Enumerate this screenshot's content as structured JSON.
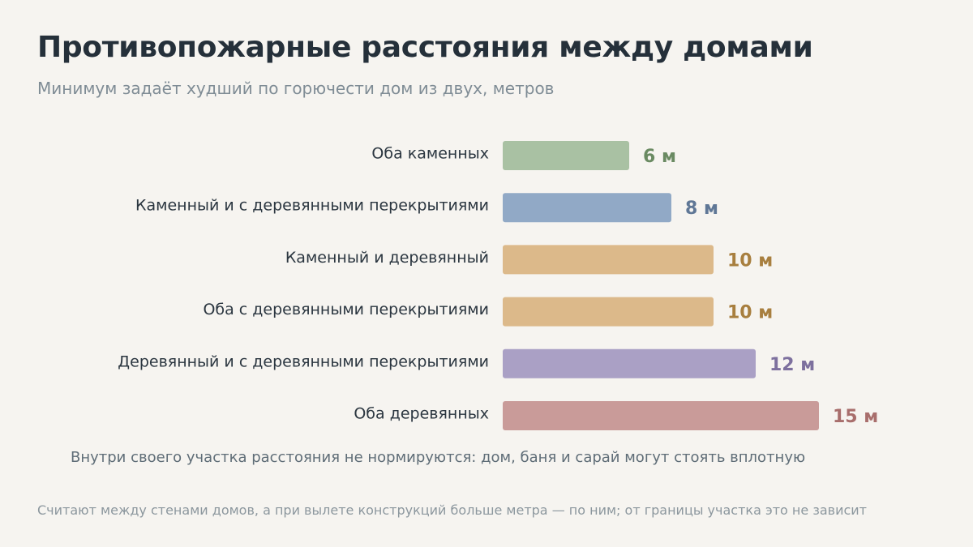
{
  "header": {
    "title": "Противопожарные расстояния между домами",
    "subtitle": "Минимум задаёт худший по горючести дом из двух, метров"
  },
  "chart_data": {
    "type": "bar",
    "orientation": "horizontal",
    "unit": "м",
    "categories": [
      "Оба каменных",
      "Каменный и с деревянными перекрытиями",
      "Каменный и деревянный",
      "Оба с деревянными перекрытиями",
      "Деревянный и с деревянными перекрытиями",
      "Оба деревянных"
    ],
    "values": [
      6,
      8,
      10,
      10,
      12,
      15
    ],
    "value_labels": [
      "6 м",
      "8 м",
      "10 м",
      "10 м",
      "12 м",
      "15 м"
    ],
    "bar_colors": [
      "#a9c1a3",
      "#91a9c6",
      "#dcb98a",
      "#dcb98a",
      "#aaa0c5",
      "#c99b99"
    ],
    "label_colors": [
      "#6a8a62",
      "#5f7796",
      "#a87f3f",
      "#a87f3f",
      "#7d709e",
      "#a86e6c"
    ],
    "grid": false,
    "legend": "none"
  },
  "notes": {
    "inner": "Внутри своего участка расстояния не нормируются: дом, баня и сарай могут стоять вплотную",
    "footer": "Считают между стенами домов, а при вылете конструкций больше метра — по ним; от границы участка это не зависит"
  }
}
